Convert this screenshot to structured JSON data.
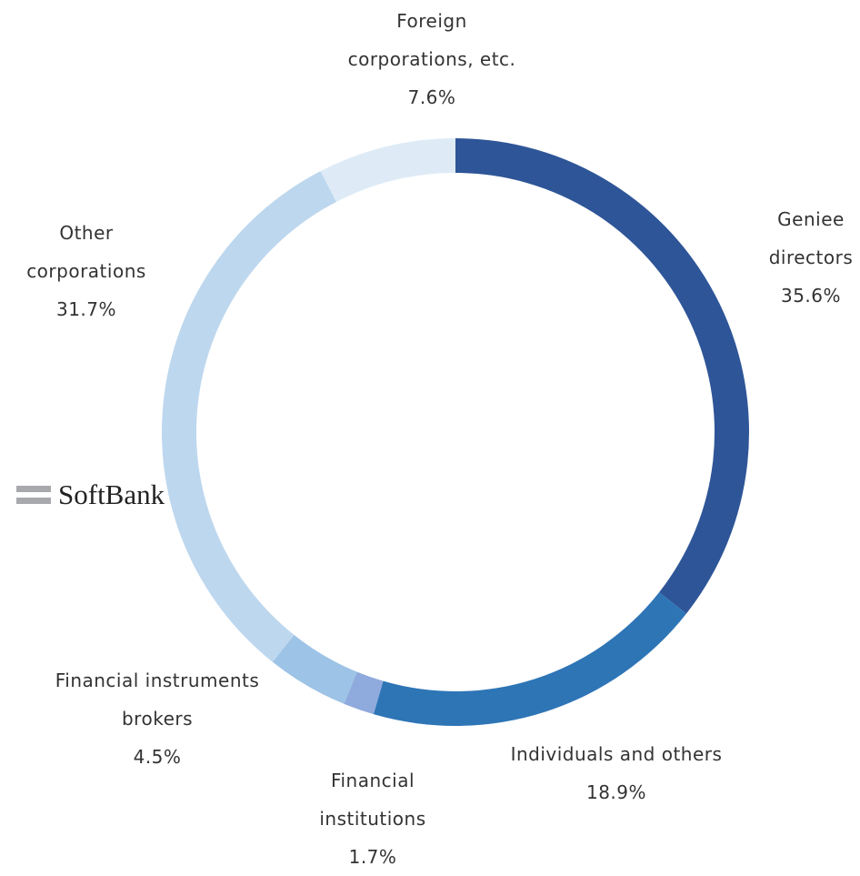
{
  "chart_data": {
    "type": "donut",
    "categories": [
      "Geniee directors",
      "Individuals and others",
      "Financial institutions",
      "Financial instruments brokers",
      "Other corporations",
      "Foreign corporations, etc."
    ],
    "values": [
      35.6,
      18.9,
      1.7,
      4.5,
      31.7,
      7.6
    ],
    "value_labels": [
      "35.6%",
      "18.9%",
      "1.7%",
      "4.5%",
      "31.7%",
      "7.6%"
    ],
    "colors": [
      "#2e5597",
      "#2e75b6",
      "#8faadc",
      "#9dc3e6",
      "#bdd7ee",
      "#deebf7"
    ]
  },
  "logo": "SoftBank"
}
